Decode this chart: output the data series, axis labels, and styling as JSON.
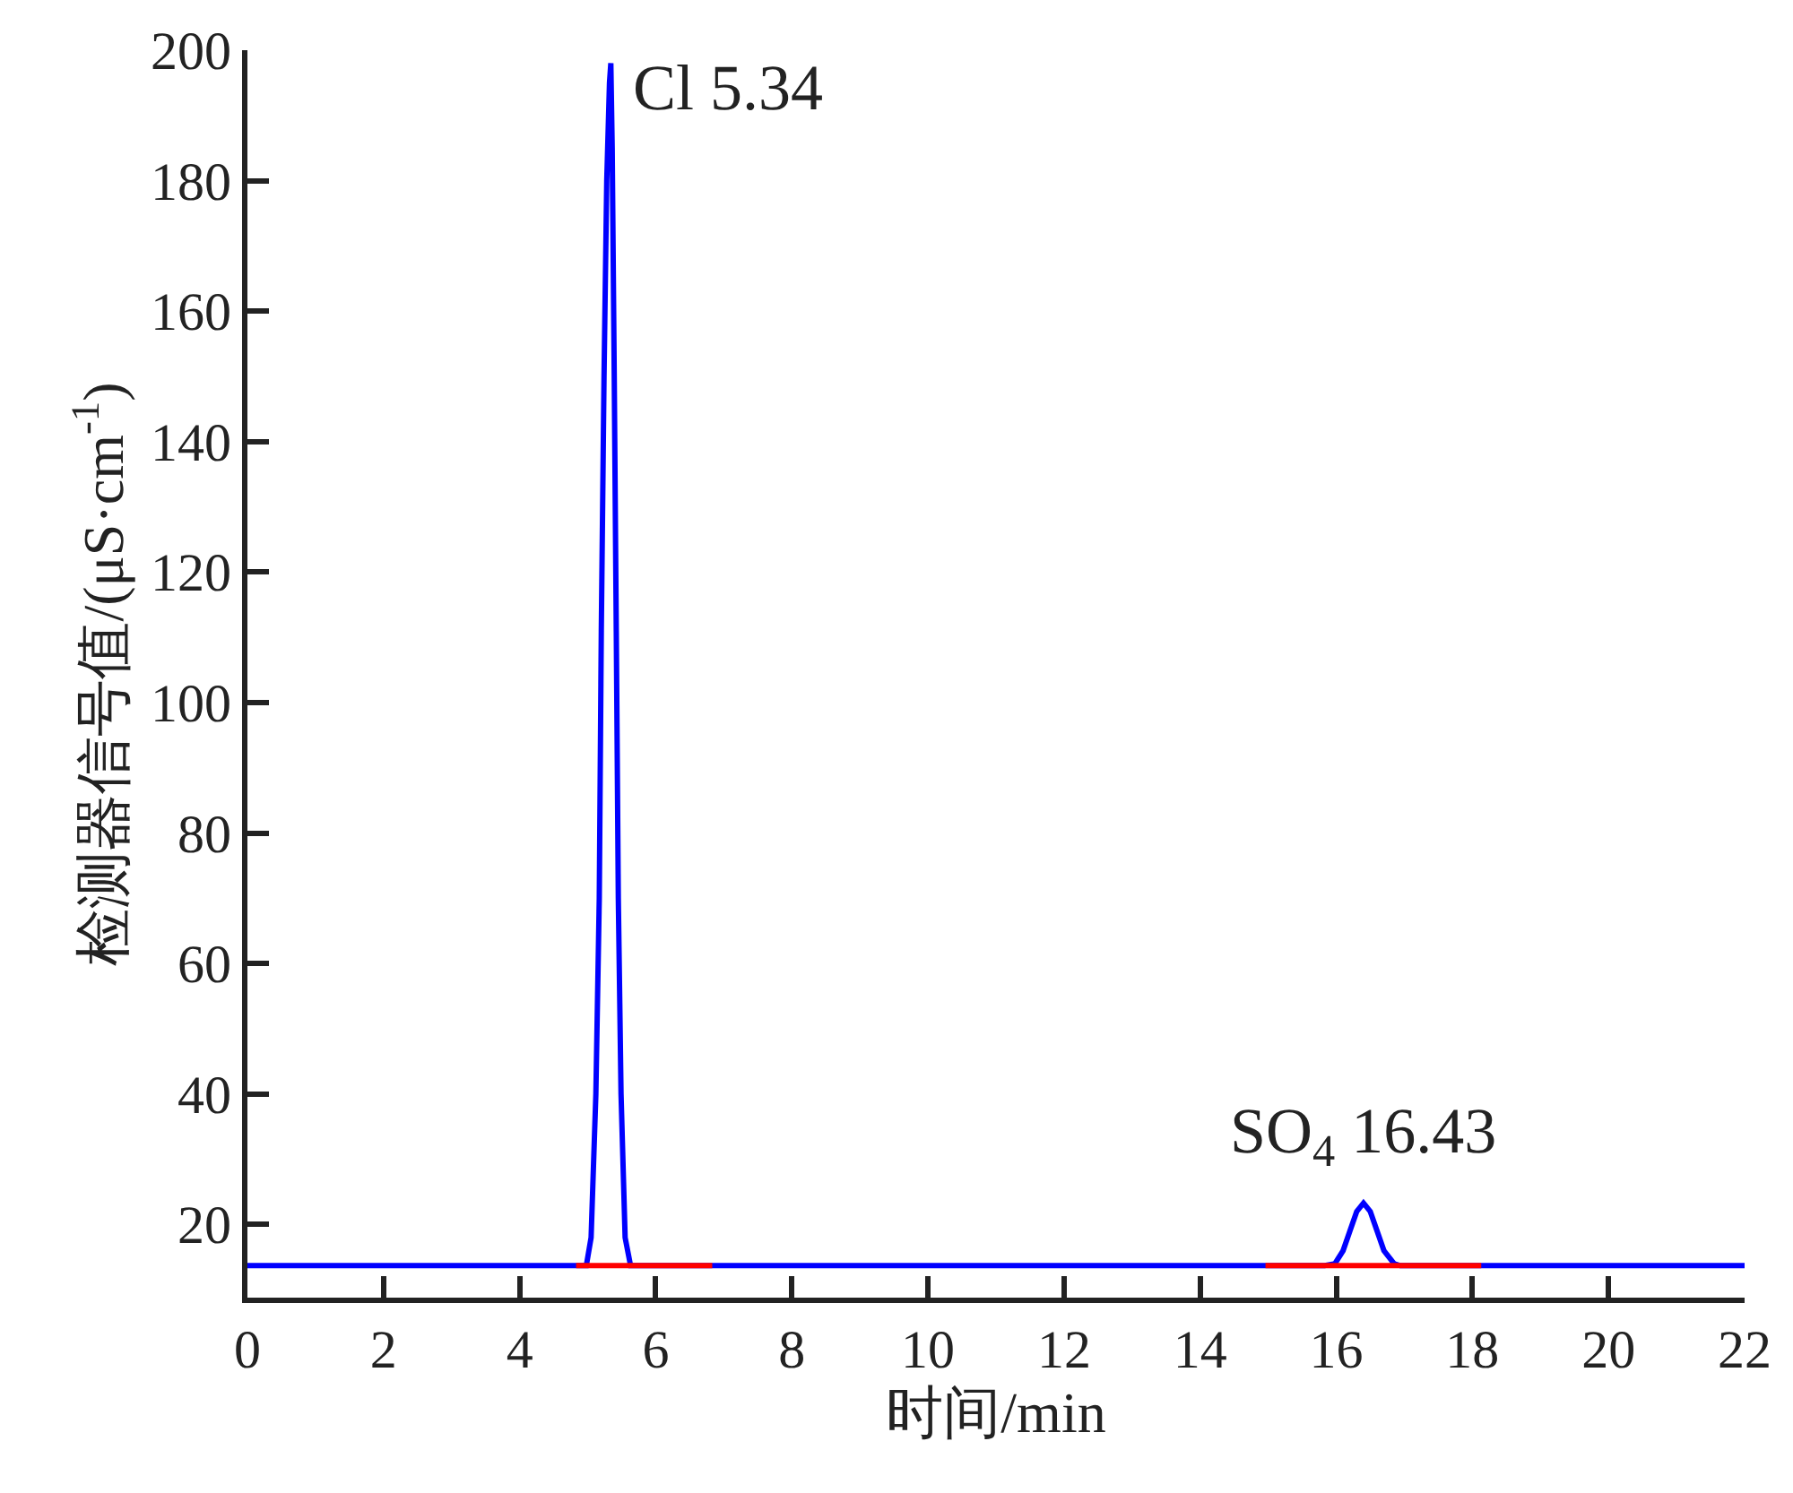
{
  "chart_data": {
    "type": "line",
    "xlabel": "时间/min",
    "ylabel": "检测器信号值/(μS·cm$^{-1}$)",
    "series": [
      {
        "color": "#0000ff",
        "x": [
          0,
          4.98,
          5.05,
          5.12,
          5.17,
          5.2,
          5.24,
          5.28,
          5.32,
          5.34,
          5.36,
          5.39,
          5.42,
          5.45,
          5.49,
          5.55,
          5.63,
          15.83,
          15.98,
          16.1,
          16.2,
          16.3,
          16.4,
          16.5,
          16.6,
          16.7,
          16.85,
          16.94,
          22
        ],
        "values": [
          13.7,
          13.7,
          18,
          40,
          70,
          111,
          150,
          180,
          195,
          198,
          185,
          150,
          111,
          70,
          40,
          18,
          13.7,
          13.7,
          14,
          16,
          19,
          22,
          23.3,
          22,
          19,
          16,
          14,
          13.7,
          13.7
        ]
      },
      {
        "color": "#ff0000",
        "x": [
          4.83,
          6.83,
          10,
          14.96,
          18.13
        ],
        "values": [
          13.7,
          13.7,
          null,
          13.7,
          13.7
        ]
      }
    ],
    "annotations": [
      {
        "text": "Cl 5.34",
        "x": 5.34,
        "y": 198
      },
      {
        "text": "SO$_{4}$ 16.43",
        "x": 16.4,
        "y": 23.3
      }
    ],
    "xlim": [
      0,
      22
    ],
    "xticks": [
      0,
      2,
      4,
      6,
      8,
      10,
      12,
      14,
      16,
      18,
      20,
      22
    ],
    "ylim": [
      8.8,
      200
    ],
    "yticks": [
      20,
      40,
      60,
      80,
      100,
      120,
      140,
      160,
      180,
      200
    ],
    "marker": "none",
    "line_style": "solid"
  }
}
